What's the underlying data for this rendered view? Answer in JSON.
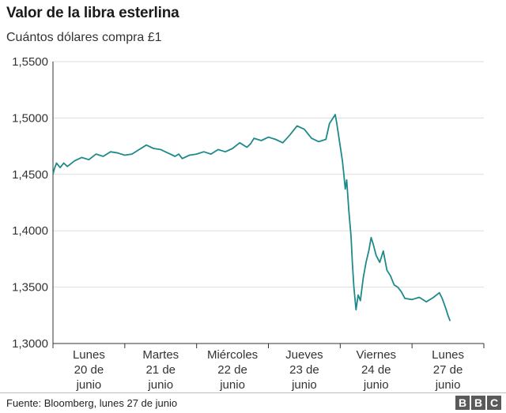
{
  "header": {
    "title": "Valor de la libra esterlina",
    "subtitle": "Cuántos dólares compra  £1"
  },
  "footer": {
    "source": "Fuente: Bloomberg, lunes 27 de junio",
    "logo_letters": [
      "B",
      "B",
      "C"
    ]
  },
  "colors": {
    "line": "#1f8a8a",
    "grid": "#dddddd",
    "axis": "#333333",
    "logo": "#5a5a5a"
  },
  "chart_data": {
    "type": "line",
    "yticks": [
      "1,5500",
      "1,5000",
      "1,4500",
      "1,4000",
      "1,3500",
      "1,3000"
    ],
    "ytick_values": [
      1.55,
      1.5,
      1.45,
      1.4,
      1.35,
      1.3
    ],
    "ylim": [
      1.3,
      1.55
    ],
    "xlim": [
      0,
      6
    ],
    "grid": true,
    "categories": [
      [
        "Lunes",
        "20 de",
        "junio"
      ],
      [
        "Martes",
        "21 de",
        "junio"
      ],
      [
        "Miércoles",
        "22 de",
        "junio"
      ],
      [
        "Jueves",
        "23 de",
        "junio"
      ],
      [
        "Viernes",
        "24 de",
        "junio"
      ],
      [
        "Lunes",
        "27 de",
        "junio"
      ]
    ],
    "series": [
      {
        "points": [
          [
            0.0,
            1.45
          ],
          [
            0.02,
            1.455
          ],
          [
            0.05,
            1.46
          ],
          [
            0.1,
            1.456
          ],
          [
            0.15,
            1.46
          ],
          [
            0.2,
            1.457
          ],
          [
            0.3,
            1.462
          ],
          [
            0.4,
            1.465
          ],
          [
            0.5,
            1.463
          ],
          [
            0.6,
            1.468
          ],
          [
            0.7,
            1.466
          ],
          [
            0.8,
            1.47
          ],
          [
            0.9,
            1.469
          ],
          [
            1.0,
            1.467
          ],
          [
            1.1,
            1.468
          ],
          [
            1.2,
            1.472
          ],
          [
            1.3,
            1.476
          ],
          [
            1.4,
            1.473
          ],
          [
            1.5,
            1.472
          ],
          [
            1.6,
            1.469
          ],
          [
            1.7,
            1.466
          ],
          [
            1.75,
            1.468
          ],
          [
            1.8,
            1.464
          ],
          [
            1.9,
            1.467
          ],
          [
            2.0,
            1.468
          ],
          [
            2.1,
            1.47
          ],
          [
            2.2,
            1.468
          ],
          [
            2.3,
            1.472
          ],
          [
            2.4,
            1.47
          ],
          [
            2.5,
            1.473
          ],
          [
            2.6,
            1.478
          ],
          [
            2.7,
            1.474
          ],
          [
            2.75,
            1.477
          ],
          [
            2.8,
            1.482
          ],
          [
            2.9,
            1.48
          ],
          [
            3.0,
            1.483
          ],
          [
            3.1,
            1.481
          ],
          [
            3.2,
            1.478
          ],
          [
            3.3,
            1.485
          ],
          [
            3.4,
            1.493
          ],
          [
            3.5,
            1.49
          ],
          [
            3.6,
            1.482
          ],
          [
            3.7,
            1.479
          ],
          [
            3.8,
            1.481
          ],
          [
            3.85,
            1.495
          ],
          [
            3.9,
            1.5
          ],
          [
            3.93,
            1.503
          ],
          [
            3.95,
            1.496
          ],
          [
            4.0,
            1.475
          ],
          [
            4.03,
            1.462
          ],
          [
            4.05,
            1.45
          ],
          [
            4.07,
            1.437
          ],
          [
            4.09,
            1.445
          ],
          [
            4.12,
            1.418
          ],
          [
            4.15,
            1.395
          ],
          [
            4.17,
            1.37
          ],
          [
            4.19,
            1.35
          ],
          [
            4.22,
            1.33
          ],
          [
            4.25,
            1.343
          ],
          [
            4.28,
            1.338
          ],
          [
            4.32,
            1.358
          ],
          [
            4.36,
            1.372
          ],
          [
            4.4,
            1.383
          ],
          [
            4.43,
            1.394
          ],
          [
            4.46,
            1.388
          ],
          [
            4.5,
            1.378
          ],
          [
            4.55,
            1.372
          ],
          [
            4.6,
            1.382
          ],
          [
            4.65,
            1.365
          ],
          [
            4.7,
            1.36
          ],
          [
            4.75,
            1.352
          ],
          [
            4.8,
            1.35
          ],
          [
            4.85,
            1.346
          ],
          [
            4.9,
            1.34
          ],
          [
            5.0,
            1.339
          ],
          [
            5.1,
            1.341
          ],
          [
            5.2,
            1.337
          ],
          [
            5.3,
            1.341
          ],
          [
            5.38,
            1.345
          ],
          [
            5.42,
            1.34
          ],
          [
            5.47,
            1.331
          ],
          [
            5.5,
            1.325
          ],
          [
            5.53,
            1.32
          ]
        ]
      }
    ]
  }
}
